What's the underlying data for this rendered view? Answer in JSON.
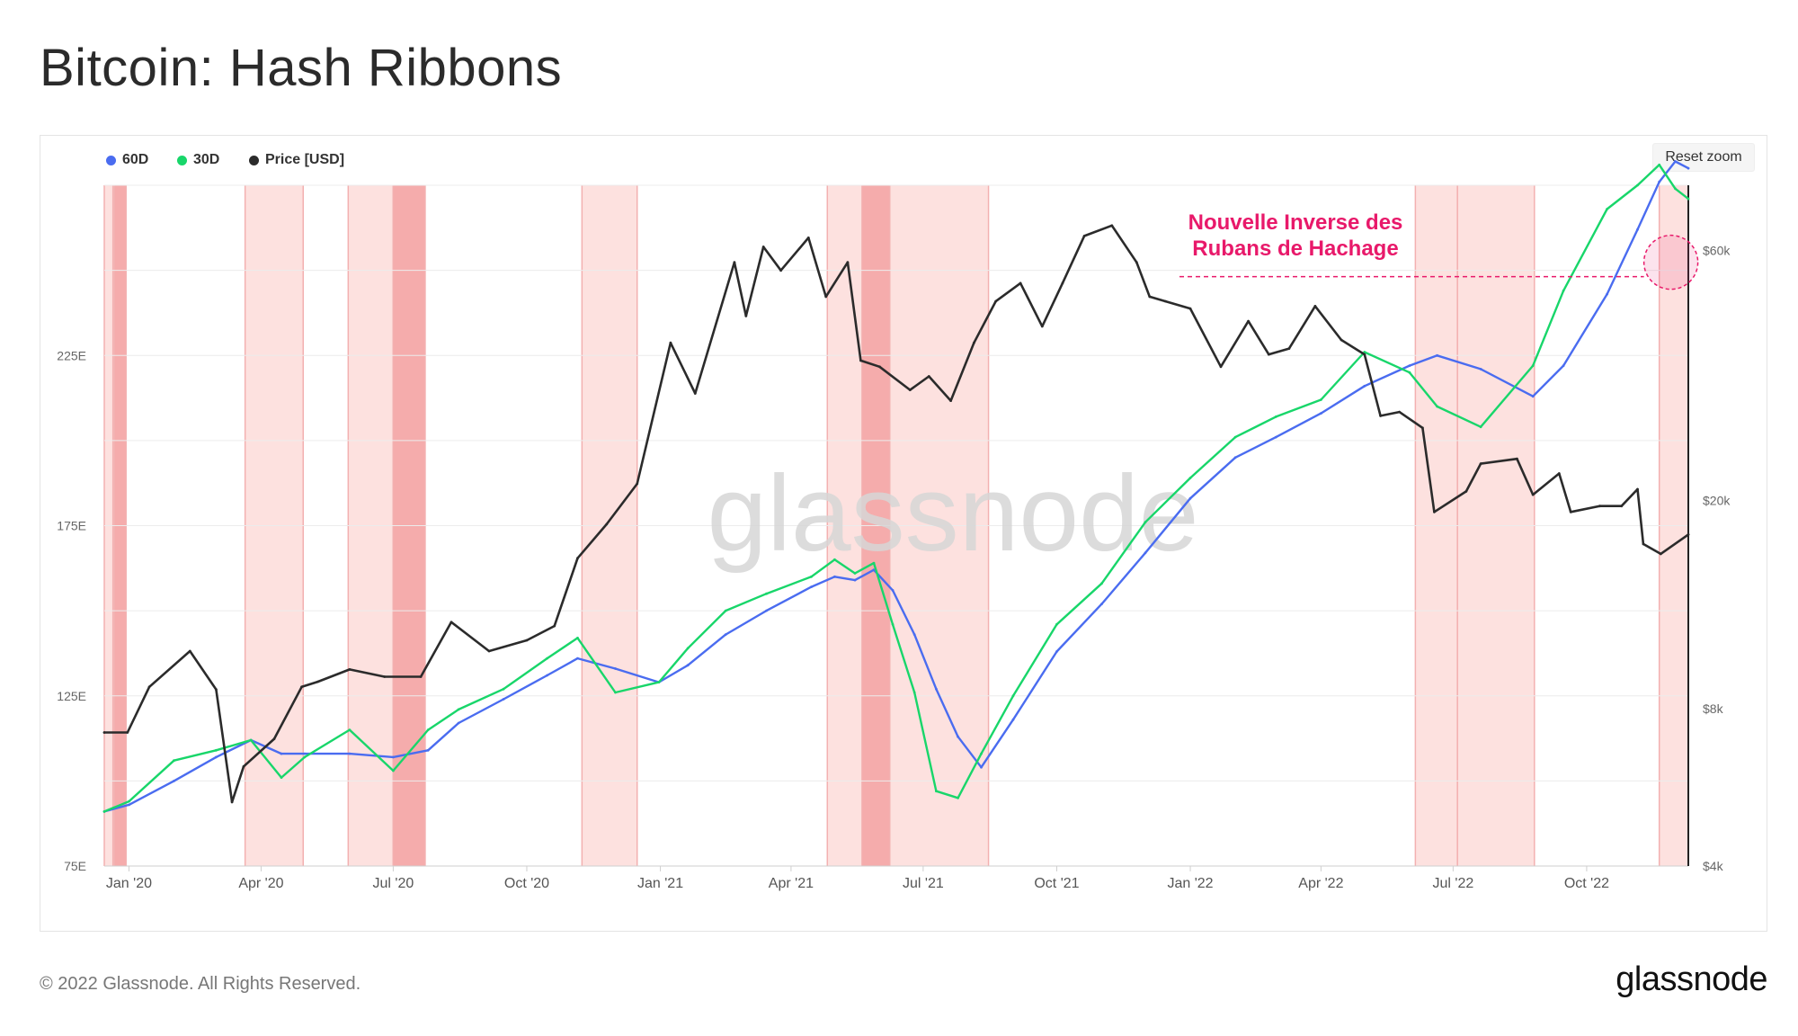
{
  "page": {
    "title": "Bitcoin: Hash Ribbons",
    "reset_zoom_label": "Reset zoom",
    "footer_copyright": "© 2022 Glassnode. All Rights Reserved.",
    "footer_logo": "glassnode",
    "watermark": "glassnode"
  },
  "chart_data": {
    "type": "line",
    "title": "Bitcoin: Hash Ribbons",
    "legend_position": "top-left",
    "legend": [
      {
        "name": "60D",
        "color": "#4a6cf0"
      },
      {
        "name": "30D",
        "color": "#18d66a"
      },
      {
        "name": "Price [USD]",
        "color": "#2b2b2b"
      }
    ],
    "x_ticks": [
      "Jan '20",
      "Apr '20",
      "Jul '20",
      "Oct '20",
      "Jan '21",
      "Apr '21",
      "Jul '21",
      "Oct '21",
      "Jan '22",
      "Apr '22",
      "Jul '22",
      "Oct '22"
    ],
    "x_range": [
      "2019-12-15",
      "2022-12-10"
    ],
    "y_left": {
      "ticks": [
        "75E",
        "125E",
        "175E",
        "225E"
      ],
      "min": 75,
      "max": 275,
      "unit": "E (H/s)"
    },
    "y_right": {
      "ticks": [
        "$4k",
        "$8k",
        "$20k",
        "$60k"
      ],
      "values": [
        4000,
        8000,
        20000,
        60000
      ],
      "scale": "log",
      "min": 4000,
      "max": 80000
    },
    "grid": true,
    "annotation": {
      "line1": "Nouvelle Inverse des",
      "line2": "Rubans de Hachage",
      "color": "#e8196a",
      "date": "2022-11-28",
      "price": 57000
    },
    "capitulation_bands": [
      {
        "start": "2019-12-15",
        "end": "2019-12-21",
        "strong": false
      },
      {
        "start": "2019-12-22",
        "end": "2019-12-30",
        "strong": true
      },
      {
        "start": "2020-03-21",
        "end": "2020-04-30",
        "strong": false
      },
      {
        "start": "2020-05-31",
        "end": "2020-07-01",
        "strong": false
      },
      {
        "start": "2020-07-01",
        "end": "2020-07-23",
        "strong": true
      },
      {
        "start": "2020-11-08",
        "end": "2020-12-16",
        "strong": false
      },
      {
        "start": "2021-04-26",
        "end": "2021-05-20",
        "strong": false
      },
      {
        "start": "2021-05-20",
        "end": "2021-06-08",
        "strong": true
      },
      {
        "start": "2021-06-08",
        "end": "2021-08-15",
        "strong": false
      },
      {
        "start": "2022-06-05",
        "end": "2022-07-04",
        "strong": false
      },
      {
        "start": "2022-07-04",
        "end": "2022-08-26",
        "strong": false
      },
      {
        "start": "2022-11-20",
        "end": "2022-12-10",
        "strong": false
      }
    ],
    "series": [
      {
        "name": "60D",
        "color": "#4a6cf0",
        "x": [
          "2019-12-15",
          "2020-01-01",
          "2020-02-01",
          "2020-03-01",
          "2020-03-25",
          "2020-04-15",
          "2020-05-01",
          "2020-06-01",
          "2020-07-01",
          "2020-07-25",
          "2020-08-15",
          "2020-09-15",
          "2020-10-15",
          "2020-11-05",
          "2020-12-01",
          "2020-12-31",
          "2021-01-20",
          "2021-02-15",
          "2021-03-15",
          "2021-04-15",
          "2021-05-01",
          "2021-05-15",
          "2021-05-28",
          "2021-06-10",
          "2021-06-25",
          "2021-07-10",
          "2021-07-25",
          "2021-08-10",
          "2021-09-01",
          "2021-10-01",
          "2021-11-01",
          "2021-12-01",
          "2022-01-01",
          "2022-02-01",
          "2022-03-01",
          "2022-04-01",
          "2022-05-01",
          "2022-06-01",
          "2022-06-20",
          "2022-07-20",
          "2022-08-25",
          "2022-09-15",
          "2022-10-15",
          "2022-11-05",
          "2022-11-20",
          "2022-12-01",
          "2022-12-10"
        ],
        "values": [
          91,
          93,
          100,
          107,
          112,
          108,
          108,
          108,
          107,
          109,
          117,
          124,
          131,
          136,
          133,
          129,
          134,
          143,
          150,
          157,
          160,
          159,
          162,
          156,
          143,
          127,
          113,
          104,
          118,
          138,
          152,
          167,
          183,
          195,
          201,
          208,
          216,
          222,
          225,
          221,
          213,
          222,
          243,
          262,
          276,
          282,
          280
        ]
      },
      {
        "name": "30D",
        "color": "#18d66a",
        "x": [
          "2019-12-15",
          "2020-01-01",
          "2020-02-01",
          "2020-03-01",
          "2020-03-25",
          "2020-04-15",
          "2020-05-01",
          "2020-06-01",
          "2020-07-01",
          "2020-07-25",
          "2020-08-15",
          "2020-09-15",
          "2020-10-15",
          "2020-11-05",
          "2020-12-01",
          "2020-12-31",
          "2021-01-20",
          "2021-02-15",
          "2021-03-15",
          "2021-04-15",
          "2021-05-01",
          "2021-05-15",
          "2021-05-28",
          "2021-06-10",
          "2021-06-25",
          "2021-07-10",
          "2021-07-25",
          "2021-08-10",
          "2021-09-01",
          "2021-10-01",
          "2021-11-01",
          "2021-12-01",
          "2022-01-01",
          "2022-02-01",
          "2022-03-01",
          "2022-04-01",
          "2022-05-01",
          "2022-06-01",
          "2022-06-20",
          "2022-07-20",
          "2022-08-25",
          "2022-09-15",
          "2022-10-15",
          "2022-11-05",
          "2022-11-20",
          "2022-12-01",
          "2022-12-10"
        ],
        "values": [
          91,
          94,
          106,
          109,
          112,
          101,
          107,
          115,
          103,
          115,
          121,
          127,
          136,
          142,
          126,
          129,
          139,
          150,
          155,
          160,
          165,
          161,
          164,
          146,
          126,
          97,
          95,
          108,
          125,
          146,
          158,
          176,
          189,
          201,
          207,
          212,
          226,
          220,
          210,
          204,
          222,
          244,
          268,
          275,
          281,
          274,
          271
        ]
      },
      {
        "name": "Price [USD]",
        "color": "#2b2b2b",
        "x": [
          "2019-12-15",
          "2019-12-31",
          "2020-01-15",
          "2020-02-12",
          "2020-03-01",
          "2020-03-12",
          "2020-03-20",
          "2020-04-10",
          "2020-04-29",
          "2020-05-10",
          "2020-06-01",
          "2020-06-25",
          "2020-07-20",
          "2020-08-10",
          "2020-09-05",
          "2020-10-01",
          "2020-10-20",
          "2020-11-05",
          "2020-11-25",
          "2020-12-16",
          "2021-01-08",
          "2021-01-25",
          "2021-02-21",
          "2021-03-01",
          "2021-03-13",
          "2021-03-25",
          "2021-04-13",
          "2021-04-25",
          "2021-05-10",
          "2021-05-19",
          "2021-06-01",
          "2021-06-22",
          "2021-07-05",
          "2021-07-20",
          "2021-08-05",
          "2021-08-20",
          "2021-09-06",
          "2021-09-21",
          "2021-10-05",
          "2021-10-20",
          "2021-11-08",
          "2021-11-25",
          "2021-12-04",
          "2021-12-15",
          "2022-01-01",
          "2022-01-22",
          "2022-02-10",
          "2022-02-24",
          "2022-03-10",
          "2022-03-28",
          "2022-04-15",
          "2022-05-01",
          "2022-05-12",
          "2022-05-25",
          "2022-06-10",
          "2022-06-18",
          "2022-07-10",
          "2022-07-20",
          "2022-08-14",
          "2022-08-25",
          "2022-09-12",
          "2022-09-20",
          "2022-10-10",
          "2022-10-25",
          "2022-11-05",
          "2022-11-09",
          "2022-11-21",
          "2022-12-10"
        ],
        "values": [
          7200,
          7200,
          8800,
          10300,
          8700,
          5300,
          6200,
          7000,
          8800,
          9000,
          9500,
          9200,
          9200,
          11700,
          10300,
          10800,
          11500,
          15500,
          18000,
          21500,
          40000,
          32000,
          57000,
          45000,
          61000,
          55000,
          63500,
          49000,
          57000,
          37000,
          36000,
          32500,
          34500,
          31000,
          40000,
          48000,
          52000,
          43000,
          52000,
          64000,
          67000,
          57000,
          49000,
          48000,
          46500,
          36000,
          44000,
          38000,
          39000,
          47000,
          40500,
          38000,
          29000,
          29500,
          27500,
          19000,
          20800,
          23500,
          24000,
          20500,
          22500,
          19000,
          19500,
          19500,
          21000,
          16500,
          15800,
          17200
        ]
      }
    ]
  }
}
